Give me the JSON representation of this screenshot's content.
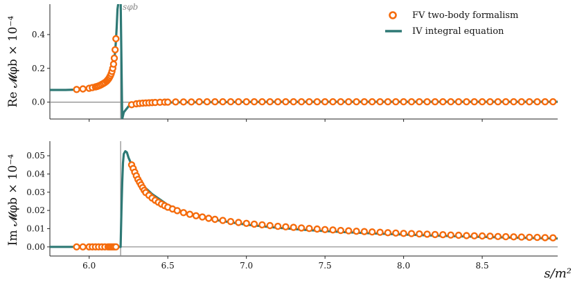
{
  "chart_data": [
    {
      "type": "line",
      "panel": "top",
      "ylabel": "Re 𝓜φb × 10⁻⁴",
      "xlim": [
        5.75,
        8.98
      ],
      "ylim": [
        -0.1,
        0.58
      ],
      "yticks": [
        "0.0",
        "0.2",
        "0.4"
      ],
      "ytick_values": [
        0.0,
        0.2,
        0.4
      ],
      "threshold_label": "sφb",
      "threshold_x": 6.2,
      "grid": false,
      "series": [
        {
          "name": "IV integral equation",
          "color": "#2e7975",
          "x": [
            5.75,
            5.85,
            5.92,
            5.97,
            6.0,
            6.03,
            6.05,
            6.07,
            6.09,
            6.1,
            6.11,
            6.12,
            6.13,
            6.14,
            6.15,
            6.155,
            6.16,
            6.165,
            6.17,
            6.175,
            6.18,
            6.19,
            6.2,
            6.21,
            6.22,
            6.25,
            6.3,
            6.35,
            6.4,
            6.5,
            6.6,
            6.8,
            7.0,
            7.5,
            8.0,
            8.5,
            8.98
          ],
          "y": [
            0.072,
            0.072,
            0.074,
            0.078,
            0.082,
            0.088,
            0.094,
            0.102,
            0.112,
            0.12,
            0.13,
            0.142,
            0.158,
            0.178,
            0.205,
            0.225,
            0.255,
            0.3,
            0.36,
            0.44,
            0.55,
            0.62,
            0.62,
            -0.1,
            -0.06,
            -0.025,
            -0.012,
            -0.007,
            -0.004,
            -0.002,
            -0.001,
            0.0,
            0.001,
            0.002,
            0.002,
            0.002,
            0.002
          ]
        },
        {
          "name": "FV two-body formalism",
          "color": "#f56b0c",
          "x": [
            5.92,
            5.96,
            6.0,
            6.02,
            6.04,
            6.05,
            6.06,
            6.07,
            6.08,
            6.09,
            6.1,
            6.11,
            6.115,
            6.12,
            6.125,
            6.13,
            6.135,
            6.14,
            6.145,
            6.15,
            6.155,
            6.16,
            6.165,
            6.17,
            6.27,
            6.3,
            6.32,
            6.34,
            6.36,
            6.38,
            6.4,
            6.42,
            6.45,
            6.48,
            6.5,
            6.55,
            6.6,
            6.65,
            6.7,
            6.75,
            6.8,
            6.85,
            6.9,
            6.95,
            7.0,
            7.05,
            7.1,
            7.15,
            7.2,
            7.25,
            7.3,
            7.35,
            7.4,
            7.45,
            7.5,
            7.55,
            7.6,
            7.65,
            7.7,
            7.75,
            7.8,
            7.85,
            7.9,
            7.95,
            8.0,
            8.05,
            8.1,
            8.15,
            8.2,
            8.25,
            8.3,
            8.35,
            8.4,
            8.45,
            8.5,
            8.55,
            8.6,
            8.65,
            8.7,
            8.75,
            8.8,
            8.85,
            8.9,
            8.95
          ],
          "y": [
            0.075,
            0.078,
            0.082,
            0.086,
            0.09,
            0.093,
            0.096,
            0.1,
            0.105,
            0.11,
            0.116,
            0.123,
            0.128,
            0.134,
            0.14,
            0.148,
            0.157,
            0.168,
            0.182,
            0.2,
            0.225,
            0.26,
            0.31,
            0.375,
            -0.015,
            -0.01,
            -0.008,
            -0.006,
            -0.005,
            -0.004,
            -0.003,
            -0.002,
            -0.001,
            0.0,
            0.0,
            0.001,
            0.001,
            0.001,
            0.002,
            0.002,
            0.002,
            0.002,
            0.002,
            0.002,
            0.002,
            0.002,
            0.002,
            0.002,
            0.002,
            0.002,
            0.002,
            0.002,
            0.002,
            0.002,
            0.002,
            0.002,
            0.002,
            0.002,
            0.002,
            0.002,
            0.002,
            0.002,
            0.002,
            0.002,
            0.002,
            0.002,
            0.002,
            0.002,
            0.002,
            0.002,
            0.002,
            0.002,
            0.002,
            0.002,
            0.002,
            0.002,
            0.002,
            0.002,
            0.002,
            0.002,
            0.002,
            0.002,
            0.002,
            0.002
          ]
        }
      ],
      "legend_position": "top-right"
    },
    {
      "type": "line",
      "panel": "bottom",
      "ylabel": "Im 𝓜φb × 10⁻⁴",
      "xlabel": "s/m²",
      "xlim": [
        5.75,
        8.98
      ],
      "ylim": [
        -0.005,
        0.058
      ],
      "xticks": [
        "6.0",
        "6.5",
        "7.0",
        "7.5",
        "8.0",
        "8.5"
      ],
      "xtick_values": [
        6.0,
        6.5,
        7.0,
        7.5,
        8.0,
        8.5
      ],
      "yticks": [
        "0.00",
        "0.01",
        "0.02",
        "0.03",
        "0.04",
        "0.05"
      ],
      "ytick_values": [
        0.0,
        0.01,
        0.02,
        0.03,
        0.04,
        0.05
      ],
      "threshold_x": 6.2,
      "grid": false,
      "series": [
        {
          "name": "IV integral equation",
          "color": "#2e7975",
          "x": [
            5.75,
            6.0,
            6.19,
            6.2,
            6.205,
            6.21,
            6.215,
            6.22,
            6.23,
            6.24,
            6.25,
            6.27,
            6.3,
            6.35,
            6.4,
            6.45,
            6.5,
            6.6,
            6.7,
            6.8,
            6.9,
            7.0,
            7.2,
            7.4,
            7.6,
            7.8,
            8.0,
            8.2,
            8.4,
            8.6,
            8.8,
            8.98
          ],
          "y": [
            0.0,
            0.0,
            0.0,
            0.0,
            0.02,
            0.035,
            0.046,
            0.051,
            0.0525,
            0.0518,
            0.049,
            0.045,
            0.039,
            0.033,
            0.029,
            0.026,
            0.023,
            0.019,
            0.0165,
            0.0148,
            0.0135,
            0.0122,
            0.0105,
            0.0092,
            0.0082,
            0.0074,
            0.0068,
            0.0062,
            0.0057,
            0.0053,
            0.0049,
            0.0046
          ]
        },
        {
          "name": "FV two-body formalism",
          "color": "#f56b0c",
          "x": [
            5.92,
            5.96,
            6.0,
            6.02,
            6.04,
            6.06,
            6.08,
            6.1,
            6.12,
            6.13,
            6.14,
            6.15,
            6.16,
            6.17,
            6.27,
            6.28,
            6.29,
            6.3,
            6.31,
            6.32,
            6.33,
            6.34,
            6.35,
            6.36,
            6.38,
            6.4,
            6.42,
            6.44,
            6.46,
            6.48,
            6.5,
            6.53,
            6.56,
            6.6,
            6.64,
            6.68,
            6.72,
            6.76,
            6.8,
            6.85,
            6.9,
            6.95,
            7.0,
            7.05,
            7.1,
            7.15,
            7.2,
            7.25,
            7.3,
            7.35,
            7.4,
            7.45,
            7.5,
            7.55,
            7.6,
            7.65,
            7.7,
            7.75,
            7.8,
            7.85,
            7.9,
            7.95,
            8.0,
            8.05,
            8.1,
            8.15,
            8.2,
            8.25,
            8.3,
            8.35,
            8.4,
            8.45,
            8.5,
            8.55,
            8.6,
            8.65,
            8.7,
            8.75,
            8.8,
            8.85,
            8.9,
            8.95
          ],
          "y": [
            0.0,
            0.0,
            0.0,
            0.0,
            0.0,
            0.0,
            0.0,
            0.0,
            0.0,
            0.0,
            0.0,
            0.0,
            0.0,
            0.0,
            0.045,
            0.043,
            0.041,
            0.039,
            0.037,
            0.0355,
            0.034,
            0.0325,
            0.031,
            0.0298,
            0.0283,
            0.0268,
            0.0256,
            0.0245,
            0.0235,
            0.0226,
            0.0218,
            0.0208,
            0.0199,
            0.0188,
            0.0179,
            0.0171,
            0.0164,
            0.0157,
            0.0151,
            0.0145,
            0.0139,
            0.0134,
            0.0129,
            0.0125,
            0.0121,
            0.0117,
            0.0113,
            0.011,
            0.0107,
            0.0104,
            0.0101,
            0.0098,
            0.0095,
            0.0093,
            0.009,
            0.0088,
            0.0086,
            0.0084,
            0.0082,
            0.008,
            0.0078,
            0.0076,
            0.0074,
            0.0073,
            0.0071,
            0.007,
            0.0068,
            0.0067,
            0.0065,
            0.0064,
            0.0062,
            0.0061,
            0.006,
            0.0059,
            0.0057,
            0.0056,
            0.0055,
            0.0054,
            0.0053,
            0.0052,
            0.0051,
            0.005
          ]
        }
      ]
    }
  ]
}
